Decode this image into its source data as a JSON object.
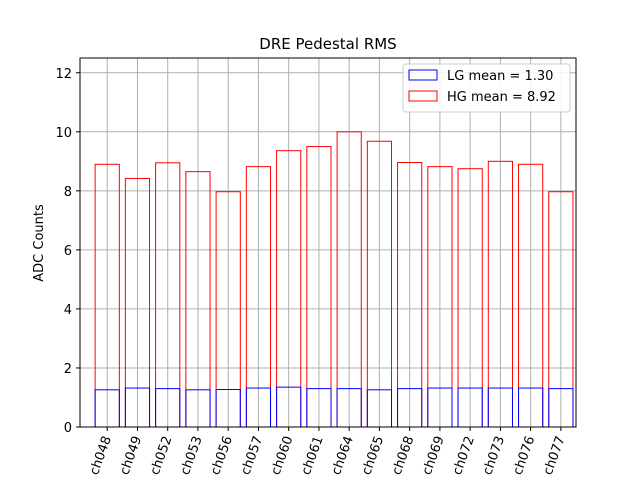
{
  "chart_data": {
    "type": "bar",
    "title": "DRE Pedestal RMS",
    "xlabel": "",
    "ylabel": "ADC Counts",
    "ylim": [
      0,
      12.5
    ],
    "yticks": [
      0,
      2,
      4,
      6,
      8,
      10,
      12
    ],
    "grid": true,
    "legend": "top-right",
    "categories": [
      "ch048",
      "ch049",
      "ch052",
      "ch053",
      "ch056",
      "ch057",
      "ch060",
      "ch061",
      "ch064",
      "ch065",
      "ch068",
      "ch069",
      "ch072",
      "ch073",
      "ch076",
      "ch077"
    ],
    "series": [
      {
        "name": "HG mean = 8.92",
        "color": "#ff0000",
        "fill": "none",
        "values": [
          8.9,
          8.42,
          8.95,
          8.65,
          7.97,
          8.82,
          9.36,
          9.5,
          10.0,
          9.68,
          8.96,
          8.82,
          8.75,
          9.0,
          8.9,
          7.97
        ]
      },
      {
        "name": "LG mean = 1.30",
        "color": "#0000ff",
        "fill": "none",
        "values": [
          1.26,
          1.32,
          1.3,
          1.26,
          1.27,
          1.32,
          1.35,
          1.3,
          1.3,
          1.26,
          1.3,
          1.32,
          1.32,
          1.32,
          1.32,
          1.3
        ]
      }
    ],
    "legend_entries": [
      {
        "label": "LG mean = 1.30",
        "color": "#0000ff"
      },
      {
        "label": "HG mean = 8.92",
        "color": "#ff0000"
      }
    ]
  }
}
